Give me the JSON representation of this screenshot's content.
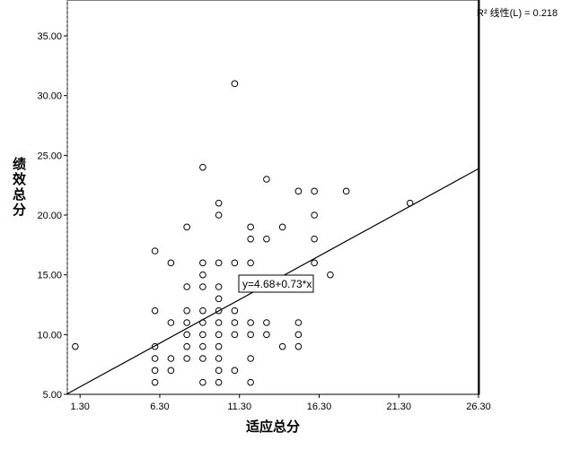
{
  "chart_data": {
    "type": "scatter",
    "xlabel": "适应总分",
    "ylabel": "绩效总分",
    "xlim": [
      0.5,
      26.3
    ],
    "ylim": [
      5.0,
      38.0
    ],
    "x_ticks": [
      "1.30",
      "6.30",
      "11.30",
      "16.30",
      "21.30",
      "26.30"
    ],
    "y_ticks": [
      "5.00",
      "10.00",
      "15.00",
      "20.00",
      "25.00",
      "30.00",
      "35.00"
    ],
    "x_tick_values": [
      1.3,
      6.3,
      11.3,
      16.3,
      21.3,
      26.3
    ],
    "y_tick_values": [
      5,
      10,
      15,
      20,
      25,
      30,
      35
    ],
    "fit_line": {
      "intercept": 4.68,
      "slope": 0.73,
      "equation_label": "y=4.68+0.73*x",
      "r2_label": "R² 线性(L) = 0.218"
    },
    "points": [
      [
        1,
        9
      ],
      [
        6,
        6
      ],
      [
        6,
        7
      ],
      [
        6,
        8
      ],
      [
        6,
        9
      ],
      [
        6,
        12
      ],
      [
        6,
        17
      ],
      [
        7,
        7
      ],
      [
        7,
        8
      ],
      [
        7,
        11
      ],
      [
        7,
        16
      ],
      [
        8,
        8
      ],
      [
        8,
        9
      ],
      [
        8,
        10
      ],
      [
        8,
        11
      ],
      [
        8,
        12
      ],
      [
        8,
        14
      ],
      [
        8,
        19
      ],
      [
        9,
        6
      ],
      [
        9,
        8
      ],
      [
        9,
        9
      ],
      [
        9,
        10
      ],
      [
        9,
        11
      ],
      [
        9,
        12
      ],
      [
        9,
        14
      ],
      [
        9,
        15
      ],
      [
        9,
        16
      ],
      [
        9,
        24
      ],
      [
        10,
        6
      ],
      [
        10,
        7
      ],
      [
        10,
        8
      ],
      [
        10,
        9
      ],
      [
        10,
        10
      ],
      [
        10,
        11
      ],
      [
        10,
        12
      ],
      [
        10,
        13
      ],
      [
        10,
        14
      ],
      [
        10,
        16
      ],
      [
        10,
        20
      ],
      [
        10,
        21
      ],
      [
        11,
        7
      ],
      [
        11,
        10
      ],
      [
        11,
        11
      ],
      [
        11,
        12
      ],
      [
        11,
        16
      ],
      [
        11,
        31
      ],
      [
        12,
        6
      ],
      [
        12,
        8
      ],
      [
        12,
        10
      ],
      [
        12,
        11
      ],
      [
        12,
        16
      ],
      [
        12,
        18
      ],
      [
        12,
        19
      ],
      [
        13,
        10
      ],
      [
        13,
        11
      ],
      [
        13,
        18
      ],
      [
        13,
        23
      ],
      [
        14,
        9
      ],
      [
        14,
        19
      ],
      [
        15,
        9
      ],
      [
        15,
        10
      ],
      [
        15,
        11
      ],
      [
        15,
        22
      ],
      [
        16,
        16
      ],
      [
        16,
        18
      ],
      [
        16,
        20
      ],
      [
        16,
        22
      ],
      [
        17,
        15
      ],
      [
        18,
        22
      ],
      [
        22,
        21
      ]
    ]
  }
}
